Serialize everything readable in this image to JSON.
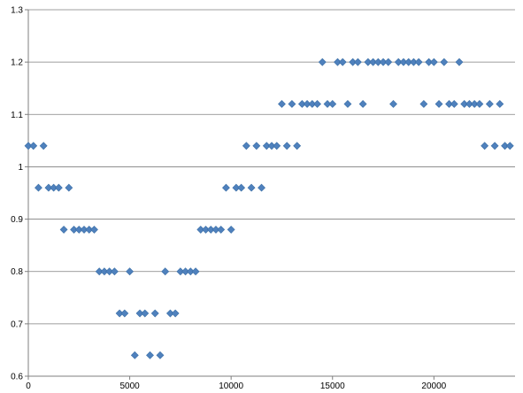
{
  "chart_data": {
    "type": "scatter",
    "title": "",
    "xlabel": "",
    "ylabel": "",
    "xlim": [
      0,
      24000
    ],
    "ylim": [
      0.6,
      1.3
    ],
    "grid": "horizontal",
    "legend": "none",
    "marker": "diamond",
    "color": "#4f81bd",
    "x_ticks": [
      0,
      5000,
      10000,
      15000,
      20000
    ],
    "x_tick_labels": [
      "0",
      "5000",
      "10000",
      "15000",
      "20000"
    ],
    "y_ticks": [
      0.6,
      0.7,
      0.8,
      0.9,
      1.0,
      1.1,
      1.2,
      1.3
    ],
    "y_tick_labels": [
      "0.6",
      "0.7",
      "0.8",
      "0.9",
      "1",
      "1.1",
      "1.2",
      "1.3"
    ],
    "series": [
      {
        "points": [
          [
            0,
            1.04
          ],
          [
            250,
            1.04
          ],
          [
            750,
            1.04
          ],
          [
            500,
            0.96
          ],
          [
            1000,
            0.96
          ],
          [
            1250,
            0.96
          ],
          [
            1500,
            0.96
          ],
          [
            2000,
            0.96
          ],
          [
            1750,
            0.88
          ],
          [
            2250,
            0.88
          ],
          [
            2500,
            0.88
          ],
          [
            2750,
            0.88
          ],
          [
            3000,
            0.88
          ],
          [
            3250,
            0.88
          ],
          [
            3500,
            0.8
          ],
          [
            3750,
            0.8
          ],
          [
            4000,
            0.8
          ],
          [
            4250,
            0.8
          ],
          [
            4500,
            0.72
          ],
          [
            4750,
            0.72
          ],
          [
            5000,
            0.8
          ],
          [
            5250,
            0.64
          ],
          [
            5500,
            0.72
          ],
          [
            5750,
            0.72
          ],
          [
            6000,
            0.64
          ],
          [
            6250,
            0.72
          ],
          [
            6500,
            0.64
          ],
          [
            6750,
            0.8
          ],
          [
            7000,
            0.72
          ],
          [
            7250,
            0.72
          ],
          [
            7500,
            0.8
          ],
          [
            7750,
            0.8
          ],
          [
            8000,
            0.8
          ],
          [
            8250,
            0.8
          ],
          [
            8500,
            0.88
          ],
          [
            8750,
            0.88
          ],
          [
            9000,
            0.88
          ],
          [
            9250,
            0.88
          ],
          [
            9500,
            0.88
          ],
          [
            9750,
            0.96
          ],
          [
            10000,
            0.88
          ],
          [
            10250,
            0.96
          ],
          [
            10500,
            0.96
          ],
          [
            10750,
            1.04
          ],
          [
            11000,
            0.96
          ],
          [
            11250,
            1.04
          ],
          [
            11500,
            0.96
          ],
          [
            11750,
            1.04
          ],
          [
            12000,
            1.04
          ],
          [
            12250,
            1.04
          ],
          [
            12500,
            1.12
          ],
          [
            12750,
            1.04
          ],
          [
            13000,
            1.12
          ],
          [
            13250,
            1.04
          ],
          [
            13500,
            1.12
          ],
          [
            13750,
            1.12
          ],
          [
            14000,
            1.12
          ],
          [
            14250,
            1.12
          ],
          [
            14500,
            1.2
          ],
          [
            14750,
            1.12
          ],
          [
            15000,
            1.12
          ],
          [
            15250,
            1.2
          ],
          [
            15500,
            1.2
          ],
          [
            15750,
            1.12
          ],
          [
            16000,
            1.2
          ],
          [
            16250,
            1.2
          ],
          [
            16500,
            1.12
          ],
          [
            16750,
            1.2
          ],
          [
            17000,
            1.2
          ],
          [
            17250,
            1.2
          ],
          [
            17500,
            1.2
          ],
          [
            17750,
            1.2
          ],
          [
            18000,
            1.12
          ],
          [
            18250,
            1.2
          ],
          [
            18500,
            1.2
          ],
          [
            18750,
            1.2
          ],
          [
            19000,
            1.2
          ],
          [
            19250,
            1.2
          ],
          [
            19500,
            1.12
          ],
          [
            19750,
            1.2
          ],
          [
            20000,
            1.2
          ],
          [
            20250,
            1.12
          ],
          [
            20500,
            1.2
          ],
          [
            20750,
            1.12
          ],
          [
            21000,
            1.12
          ],
          [
            21250,
            1.2
          ],
          [
            21500,
            1.12
          ],
          [
            21750,
            1.12
          ],
          [
            22000,
            1.12
          ],
          [
            22250,
            1.12
          ],
          [
            22500,
            1.04
          ],
          [
            22750,
            1.12
          ],
          [
            23000,
            1.04
          ],
          [
            23250,
            1.12
          ],
          [
            23500,
            1.04
          ],
          [
            23750,
            1.04
          ]
        ]
      }
    ]
  }
}
